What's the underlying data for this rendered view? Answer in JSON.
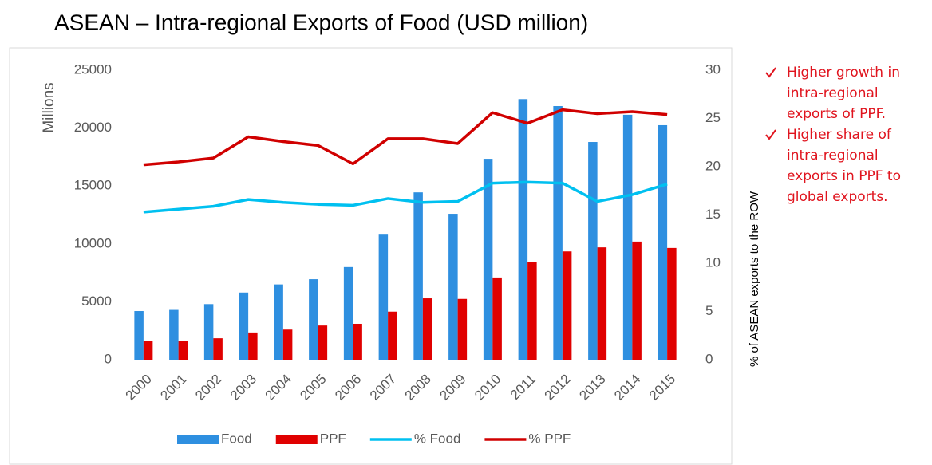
{
  "chart_data": {
    "type": "bar",
    "title": "ASEAN – Intra-regional Exports of Food (USD million)",
    "ylabel": "Millions",
    "y2label": "% of ASEAN exports to the ROW",
    "categories": [
      "2000",
      "2001",
      "2002",
      "2003",
      "2004",
      "2005",
      "2006",
      "2007",
      "2008",
      "2009",
      "2010",
      "2011",
      "2012",
      "2013",
      "2014",
      "2015"
    ],
    "series": [
      {
        "name": "Food",
        "type": "bar",
        "color": "#2e8fe0",
        "values": [
          4200,
          4300,
          4800,
          5800,
          6500,
          6950,
          8000,
          10800,
          14450,
          12600,
          17350,
          22500,
          21900,
          18800,
          21150,
          20250
        ]
      },
      {
        "name": "PPF",
        "type": "bar",
        "color": "#e00000",
        "values": [
          1600,
          1650,
          1850,
          2350,
          2600,
          2950,
          3100,
          4150,
          5300,
          5250,
          7100,
          8450,
          9350,
          9700,
          10200,
          9650
        ]
      },
      {
        "name": "% Food",
        "type": "line",
        "axis": "y2",
        "color": "#00c0f0",
        "values": [
          15.3,
          15.6,
          15.9,
          16.6,
          16.3,
          16.1,
          16.0,
          16.7,
          16.3,
          16.4,
          18.3,
          18.4,
          18.3,
          16.4,
          17.1,
          18.2
        ]
      },
      {
        "name": "% PPF",
        "type": "line",
        "axis": "y2",
        "color": "#d00000",
        "values": [
          20.2,
          20.5,
          20.9,
          23.1,
          22.6,
          22.2,
          20.3,
          22.9,
          22.9,
          22.4,
          25.6,
          24.5,
          25.9,
          25.5,
          25.7,
          25.4
        ]
      }
    ],
    "ylim": [
      0,
      25000
    ],
    "yticks": [
      0,
      5000,
      10000,
      15000,
      20000,
      25000
    ],
    "y2lim": [
      0,
      30
    ],
    "y2ticks": [
      0,
      5,
      10,
      15,
      20,
      25,
      30
    ],
    "legend": "bottom",
    "annotations": [
      "Higher growth in intra-regional exports of PPF.",
      "Higher share of intra-regional exports in PPF to global exports."
    ]
  }
}
